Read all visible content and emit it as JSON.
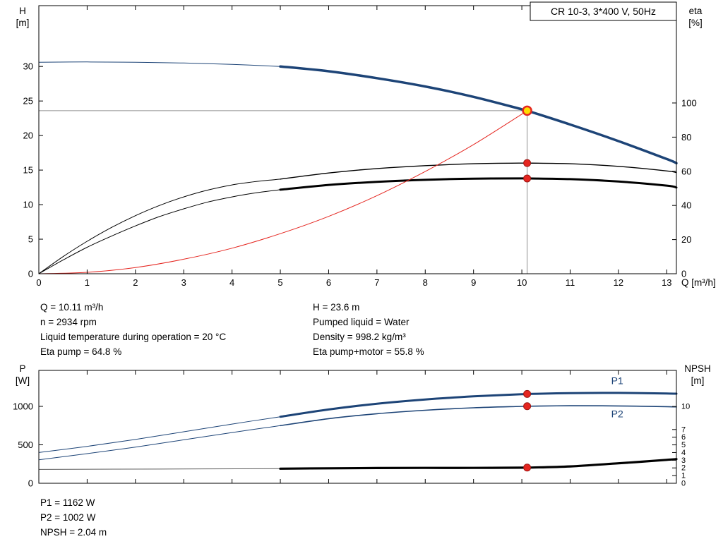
{
  "colors": {
    "blue": "#1d4477",
    "black": "#000000",
    "red": "#e52620",
    "red_dark": "#9c1714",
    "yellow": "#ffdd00",
    "gray": "#8f8f8f",
    "thin_gray": "#5a5a5a"
  },
  "info": {
    "left": [
      "Q = 10.11 m³/h",
      "n = 2934 rpm",
      "Liquid temperature during operation = 20 °C",
      "Eta pump = 64.8 %"
    ],
    "right": [
      "H = 23.6 m",
      "Pumped liquid = Water",
      "Density = 998.2 kg/m³",
      "Eta pump+motor = 55.8 %"
    ]
  },
  "results": [
    "P1 = 1162 W",
    "P2 = 1002 W",
    "NPSH = 2.04 m"
  ],
  "chart_data": [
    {
      "type": "line",
      "title": "CR 10-3, 3*400 V, 50Hz",
      "xlabel": "Q [m³/h]",
      "ylabel_left": [
        "H",
        "[m]"
      ],
      "ylabel_right": [
        "eta",
        "[%]"
      ],
      "xlim": [
        0,
        13.2
      ],
      "ylim_left": [
        0,
        38.8
      ],
      "ylim_right": [
        0,
        157
      ],
      "xticks": [
        0,
        1,
        2,
        3,
        4,
        5,
        6,
        7,
        8,
        9,
        10,
        11,
        12,
        13
      ],
      "x_tick_labels": true,
      "yticks_left": [
        0,
        5,
        10,
        15,
        20,
        25,
        30
      ],
      "yticks_right": [
        0,
        20,
        40,
        60,
        80,
        100
      ],
      "legend": true,
      "series": [
        {
          "name": "head-curve-lead",
          "axis": "left",
          "color": "blue",
          "width": 1,
          "x": [
            0,
            1,
            2,
            3,
            4,
            5
          ],
          "y": [
            30.6,
            30.65,
            30.6,
            30.5,
            30.3,
            30.0
          ]
        },
        {
          "name": "head-curve",
          "axis": "left",
          "color": "blue",
          "width": 3.5,
          "x": [
            5,
            6,
            7,
            8,
            9,
            10,
            10.11,
            11,
            12,
            13,
            13.2
          ],
          "y": [
            30.0,
            29.3,
            28.3,
            27.1,
            25.6,
            23.8,
            23.6,
            21.6,
            19.2,
            16.6,
            16.0
          ]
        },
        {
          "name": "eta-pump-lead",
          "axis": "right",
          "color": "black",
          "width": 1,
          "x": [
            0,
            0.5,
            1,
            1.5,
            2,
            2.5,
            3,
            3.5,
            4,
            4.5,
            5
          ],
          "y": [
            0,
            10,
            19,
            27,
            34,
            40,
            45,
            49,
            52,
            54,
            55.4
          ]
        },
        {
          "name": "eta-pump",
          "axis": "right",
          "color": "black",
          "width": 1.4,
          "x": [
            5,
            6,
            7,
            8,
            9,
            10,
            10.11,
            11,
            12,
            13,
            13.2
          ],
          "y": [
            55.4,
            59.0,
            61.6,
            63.3,
            64.4,
            64.8,
            64.8,
            64.4,
            62.9,
            60.2,
            59.2
          ]
        },
        {
          "name": "eta-pump-motor-lead",
          "axis": "right",
          "color": "black",
          "width": 1,
          "x": [
            0,
            0.5,
            1,
            1.5,
            2,
            2.5,
            3,
            3.5,
            4,
            4.5,
            5
          ],
          "y": [
            0,
            8,
            15.5,
            22,
            28,
            33.5,
            38,
            42,
            45,
            47.4,
            49.2
          ]
        },
        {
          "name": "eta-pump-motor",
          "axis": "right",
          "color": "black",
          "width": 3,
          "x": [
            5,
            6,
            7,
            8,
            9,
            10,
            10.11,
            11,
            12,
            13,
            13.2
          ],
          "y": [
            49.2,
            52.0,
            53.8,
            55.0,
            55.7,
            55.8,
            55.8,
            55.4,
            54.0,
            51.6,
            50.5
          ]
        },
        {
          "name": "system-curve",
          "axis": "left",
          "color": "red",
          "width": 1,
          "x": [
            0,
            1,
            2,
            3,
            4,
            5,
            6,
            7,
            8,
            9,
            10,
            10.11
          ],
          "y": [
            0,
            0.2,
            0.9,
            2.1,
            3.7,
            5.8,
            8.3,
            11.3,
            14.8,
            18.7,
            23.1,
            23.6
          ]
        }
      ],
      "crosshair": {
        "x": 10.11,
        "y": 23.6
      },
      "markers": [
        {
          "type": "dot",
          "x": 10.11,
          "y": 64.8,
          "axis": "right"
        },
        {
          "type": "dot",
          "x": 10.11,
          "y": 55.8,
          "axis": "right"
        },
        {
          "type": "duty",
          "x": 10.11,
          "y": 23.6,
          "axis": "left"
        }
      ]
    },
    {
      "type": "line",
      "title": "",
      "xlabel": "",
      "ylabel_left": [
        "P",
        "[W]"
      ],
      "ylabel_right": [
        "NPSH",
        "[m]"
      ],
      "xlim": [
        0,
        13.2
      ],
      "ylim_left": [
        0,
        1468
      ],
      "ylim_right": [
        0,
        14.7
      ],
      "xticks": [
        0,
        1,
        2,
        3,
        4,
        5,
        6,
        7,
        8,
        9,
        10,
        11,
        12,
        13
      ],
      "x_tick_labels": false,
      "yticks_left": [
        0,
        500,
        1000
      ],
      "yticks_right": [
        0,
        1,
        2,
        3,
        4,
        5,
        6,
        7,
        10
      ],
      "legend": false,
      "series": [
        {
          "name": "p1-curve-lead",
          "axis": "left",
          "color": "blue",
          "width": 1,
          "x": [
            0,
            1,
            2,
            3,
            4,
            5
          ],
          "y": [
            400,
            480,
            570,
            670,
            770,
            865
          ]
        },
        {
          "name": "p1-curve",
          "axis": "left",
          "color": "blue",
          "width": 3,
          "x": [
            5,
            6,
            7,
            8,
            9,
            10,
            10.11,
            11,
            12,
            13,
            13.2
          ],
          "y": [
            865,
            960,
            1035,
            1090,
            1130,
            1158,
            1162,
            1172,
            1175,
            1168,
            1165
          ]
        },
        {
          "name": "p2-curve-lead",
          "axis": "left",
          "color": "blue",
          "width": 1,
          "x": [
            0,
            1,
            2,
            3,
            4,
            5
          ],
          "y": [
            305,
            385,
            470,
            565,
            660,
            750
          ]
        },
        {
          "name": "p2-curve",
          "axis": "left",
          "color": "blue",
          "width": 1.6,
          "x": [
            5,
            6,
            7,
            8,
            9,
            10,
            10.11,
            11,
            12,
            13,
            13.2
          ],
          "y": [
            750,
            840,
            905,
            950,
            982,
            1000,
            1002,
            1008,
            1006,
            996,
            993
          ]
        },
        {
          "name": "npsh-curve-lead",
          "axis": "right",
          "color": "thin_gray",
          "width": 1,
          "x": [
            0,
            2.5,
            5
          ],
          "y": [
            1.8,
            1.85,
            1.9
          ]
        },
        {
          "name": "npsh-curve",
          "axis": "right",
          "color": "black",
          "width": 3.2,
          "x": [
            5,
            6,
            7,
            8,
            9,
            10,
            10.11,
            11,
            12,
            13,
            13.2
          ],
          "y": [
            1.9,
            1.95,
            1.98,
            2.0,
            2.0,
            2.03,
            2.04,
            2.2,
            2.6,
            3.05,
            3.15
          ]
        }
      ],
      "markers": [
        {
          "type": "dot",
          "x": 10.11,
          "y": 1162,
          "axis": "left"
        },
        {
          "type": "dot",
          "x": 10.11,
          "y": 1002,
          "axis": "left"
        },
        {
          "type": "dot",
          "x": 10.11,
          "y": 2.04,
          "axis": "right"
        }
      ],
      "labels": [
        {
          "text": "P1",
          "x": 11.85,
          "y": 1290,
          "axis": "left",
          "color": "blue"
        },
        {
          "text": "P2",
          "x": 11.85,
          "y": 860,
          "axis": "left",
          "color": "blue"
        }
      ]
    }
  ]
}
